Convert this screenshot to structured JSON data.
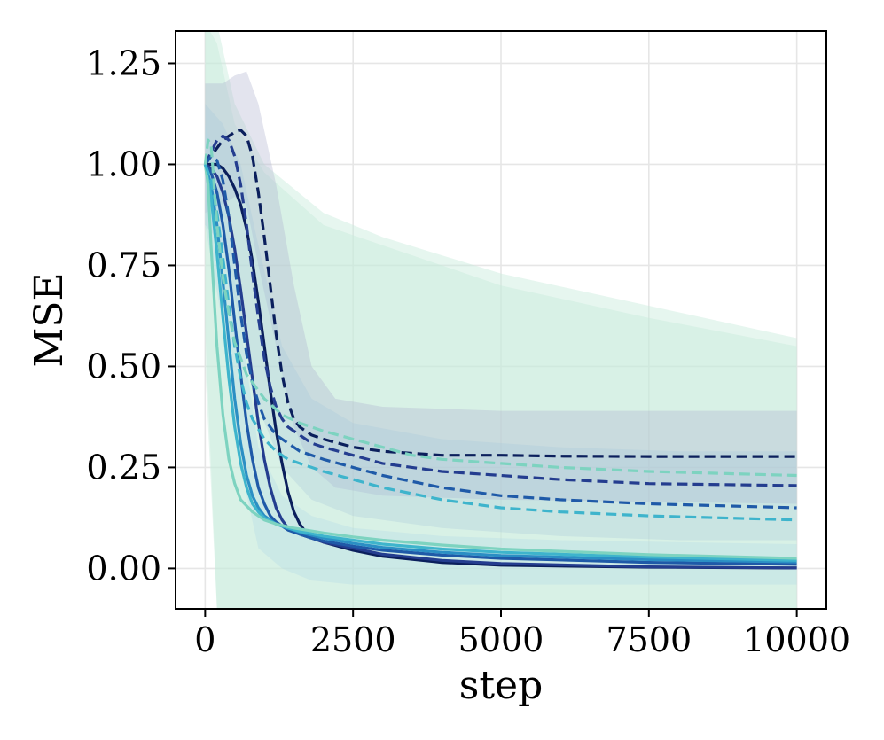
{
  "chart_data": {
    "type": "line",
    "title": "",
    "xlabel": "step",
    "ylabel": "MSE",
    "xlim": [
      -500,
      10500
    ],
    "ylim": [
      -0.1,
      1.33
    ],
    "grid": true,
    "legend": "none",
    "x_ticks": [
      0,
      2500,
      5000,
      7500,
      10000
    ],
    "x_tick_labels": [
      "0",
      "2500",
      "5000",
      "7500",
      "10000"
    ],
    "y_ticks": [
      0.0,
      0.25,
      0.5,
      0.75,
      1.0,
      1.25
    ],
    "y_tick_labels": [
      "0.00",
      "0.25",
      "0.50",
      "0.75",
      "1.00",
      "1.25"
    ],
    "bands": [
      {
        "color": "#c8ecdc",
        "opacity": 0.45,
        "x": [
          0,
          200,
          500,
          1000,
          2000,
          3000,
          5000,
          7500,
          10000
        ],
        "upper": [
          1.35,
          1.35,
          1.15,
          1.0,
          0.88,
          0.82,
          0.73,
          0.65,
          0.57
        ],
        "lower": [
          0.5,
          -0.1,
          -0.1,
          -0.1,
          -0.1,
          -0.1,
          -0.1,
          -0.1,
          -0.1
        ]
      },
      {
        "color": "#c8ecdc",
        "opacity": 0.45,
        "x": [
          0,
          200,
          500,
          1000,
          2000,
          3000,
          5000,
          7500,
          10000
        ],
        "upper": [
          1.35,
          1.3,
          1.1,
          0.98,
          0.85,
          0.8,
          0.7,
          0.62,
          0.55
        ],
        "lower": [
          0.6,
          -0.1,
          -0.1,
          -0.1,
          -0.1,
          -0.1,
          -0.1,
          -0.1,
          -0.1
        ]
      },
      {
        "color": "#aeb3cf",
        "opacity": 0.35,
        "x": [
          0,
          300,
          500,
          700,
          900,
          1200,
          1500,
          1800,
          2200,
          3000,
          5000,
          7500,
          10000
        ],
        "upper": [
          1.2,
          1.2,
          1.22,
          1.23,
          1.15,
          0.95,
          0.7,
          0.5,
          0.42,
          0.4,
          0.39,
          0.39,
          0.39
        ],
        "lower": [
          0.88,
          0.9,
          0.92,
          0.9,
          0.75,
          0.55,
          0.35,
          0.25,
          0.2,
          0.18,
          0.17,
          0.165,
          0.16
        ]
      },
      {
        "color": "#a7c8dc",
        "opacity": 0.3,
        "x": [
          0,
          300,
          600,
          900,
          1300,
          1800,
          2500,
          4000,
          6000,
          8000,
          10000
        ],
        "upper": [
          1.15,
          1.1,
          1.0,
          0.8,
          0.55,
          0.42,
          0.36,
          0.32,
          0.3,
          0.29,
          0.29
        ],
        "lower": [
          0.85,
          0.8,
          0.6,
          0.4,
          0.25,
          0.17,
          0.13,
          0.1,
          0.08,
          0.07,
          0.07
        ]
      },
      {
        "color": "#b5dbe6",
        "opacity": 0.35,
        "x": [
          0,
          300,
          600,
          900,
          1300,
          1800,
          2500,
          4000,
          6000,
          10000
        ],
        "upper": [
          1.1,
          0.95,
          0.6,
          0.3,
          0.18,
          0.13,
          0.1,
          0.08,
          0.07,
          0.06
        ],
        "lower": [
          0.85,
          0.6,
          0.25,
          0.05,
          0.0,
          -0.03,
          -0.04,
          -0.04,
          -0.04,
          -0.04
        ]
      }
    ],
    "series": [
      {
        "style": "solid",
        "color": "#0b1f5c",
        "x": [
          0,
          200,
          300,
          400,
          500,
          600,
          700,
          800,
          900,
          1000,
          1100,
          1200,
          1300,
          1400,
          1500,
          1600,
          1700,
          1800,
          2000,
          2500,
          3000,
          4000,
          5000,
          7500,
          10000
        ],
        "y": [
          1.0,
          1.0,
          0.99,
          0.97,
          0.94,
          0.9,
          0.84,
          0.76,
          0.66,
          0.55,
          0.44,
          0.34,
          0.26,
          0.19,
          0.14,
          0.11,
          0.09,
          0.08,
          0.065,
          0.045,
          0.03,
          0.015,
          0.008,
          0.003,
          0.001
        ]
      },
      {
        "style": "solid",
        "color": "#243d8f",
        "x": [
          0,
          100,
          200,
          300,
          400,
          500,
          600,
          700,
          800,
          900,
          1000,
          1100,
          1200,
          1300,
          1400,
          1600,
          1800,
          2000,
          2500,
          3000,
          4000,
          5000,
          7500,
          10000
        ],
        "y": [
          1.0,
          0.99,
          0.97,
          0.93,
          0.87,
          0.79,
          0.69,
          0.58,
          0.47,
          0.36,
          0.27,
          0.2,
          0.15,
          0.12,
          0.1,
          0.085,
          0.075,
          0.065,
          0.05,
          0.035,
          0.02,
          0.012,
          0.004,
          0.001
        ]
      },
      {
        "style": "solid",
        "color": "#1f5aa8",
        "x": [
          0,
          100,
          200,
          300,
          400,
          500,
          600,
          700,
          800,
          900,
          1000,
          1100,
          1200,
          1400,
          1600,
          1800,
          2000,
          2500,
          3000,
          4000,
          5000,
          7500,
          10000
        ],
        "y": [
          1.0,
          0.98,
          0.93,
          0.85,
          0.74,
          0.61,
          0.48,
          0.36,
          0.27,
          0.2,
          0.16,
          0.13,
          0.115,
          0.095,
          0.085,
          0.075,
          0.068,
          0.055,
          0.045,
          0.033,
          0.025,
          0.015,
          0.01
        ]
      },
      {
        "style": "solid",
        "color": "#2b8fc4",
        "x": [
          0,
          100,
          200,
          300,
          400,
          500,
          600,
          700,
          800,
          900,
          1000,
          1200,
          1400,
          1600,
          1800,
          2000,
          2500,
          3000,
          4000,
          5000,
          7500,
          10000
        ],
        "y": [
          1.0,
          0.95,
          0.85,
          0.71,
          0.56,
          0.42,
          0.31,
          0.23,
          0.18,
          0.15,
          0.13,
          0.11,
          0.1,
          0.09,
          0.082,
          0.075,
          0.062,
          0.052,
          0.04,
          0.032,
          0.022,
          0.016
        ]
      },
      {
        "style": "solid",
        "color": "#3eb4cc",
        "x": [
          0,
          100,
          200,
          300,
          400,
          500,
          600,
          700,
          800,
          900,
          1000,
          1200,
          1400,
          1600,
          1800,
          2000,
          2500,
          3000,
          4000,
          5000,
          7500,
          10000
        ],
        "y": [
          1.0,
          0.92,
          0.78,
          0.62,
          0.47,
          0.35,
          0.26,
          0.2,
          0.16,
          0.14,
          0.125,
          0.11,
          0.1,
          0.092,
          0.086,
          0.08,
          0.07,
          0.06,
          0.048,
          0.04,
          0.028,
          0.02
        ]
      },
      {
        "style": "solid",
        "color": "#7dd3c0",
        "x": [
          0,
          50,
          100,
          200,
          300,
          400,
          500,
          600,
          800,
          1000,
          1200,
          1500,
          2000,
          2500,
          3000,
          4000,
          5000,
          7500,
          10000
        ],
        "y": [
          1.0,
          0.95,
          0.8,
          0.55,
          0.38,
          0.27,
          0.21,
          0.17,
          0.14,
          0.12,
          0.11,
          0.1,
          0.088,
          0.078,
          0.07,
          0.058,
          0.048,
          0.034,
          0.025
        ]
      },
      {
        "style": "dashed",
        "color": "#0b1f5c",
        "x": [
          0,
          100,
          200,
          300,
          400,
          500,
          600,
          700,
          800,
          900,
          1000,
          1100,
          1200,
          1300,
          1400,
          1500,
          1600,
          1700,
          1800,
          2000,
          2500,
          3000,
          4000,
          5000,
          6000,
          7500,
          10000
        ],
        "y": [
          1.0,
          1.02,
          1.04,
          1.06,
          1.07,
          1.08,
          1.085,
          1.07,
          1.02,
          0.93,
          0.82,
          0.7,
          0.58,
          0.48,
          0.41,
          0.37,
          0.35,
          0.34,
          0.33,
          0.32,
          0.3,
          0.29,
          0.28,
          0.28,
          0.278,
          0.277,
          0.277
        ]
      },
      {
        "style": "dashed",
        "color": "#243d8f",
        "x": [
          0,
          100,
          200,
          300,
          400,
          500,
          600,
          700,
          800,
          900,
          1000,
          1100,
          1200,
          1300,
          1400,
          1600,
          1800,
          2000,
          2500,
          3000,
          4000,
          5000,
          6000,
          7500,
          10000
        ],
        "y": [
          1.0,
          1.03,
          1.06,
          1.07,
          1.06,
          1.02,
          0.95,
          0.85,
          0.73,
          0.62,
          0.52,
          0.45,
          0.4,
          0.37,
          0.35,
          0.33,
          0.31,
          0.3,
          0.28,
          0.26,
          0.24,
          0.23,
          0.22,
          0.21,
          0.205
        ]
      },
      {
        "style": "dashed",
        "color": "#1f5aa8",
        "x": [
          0,
          100,
          200,
          300,
          400,
          500,
          600,
          700,
          800,
          900,
          1000,
          1200,
          1400,
          1600,
          1800,
          2000,
          2500,
          3000,
          4000,
          5000,
          6000,
          7500,
          10000
        ],
        "y": [
          1.0,
          1.02,
          1.01,
          0.96,
          0.87,
          0.75,
          0.63,
          0.53,
          0.46,
          0.41,
          0.37,
          0.33,
          0.31,
          0.29,
          0.28,
          0.27,
          0.25,
          0.23,
          0.2,
          0.18,
          0.17,
          0.16,
          0.15
        ]
      },
      {
        "style": "dashed",
        "color": "#3eb4cc",
        "x": [
          0,
          100,
          200,
          300,
          400,
          500,
          600,
          700,
          800,
          1000,
          1200,
          1400,
          1600,
          1800,
          2000,
          2500,
          3000,
          4000,
          5000,
          6000,
          7500,
          10000
        ],
        "y": [
          1.0,
          0.96,
          0.88,
          0.77,
          0.65,
          0.55,
          0.47,
          0.41,
          0.37,
          0.32,
          0.29,
          0.27,
          0.26,
          0.25,
          0.24,
          0.22,
          0.2,
          0.17,
          0.15,
          0.14,
          0.13,
          0.12
        ]
      },
      {
        "style": "dashed",
        "color": "#7dd3c0",
        "x": [
          0,
          50,
          100,
          150,
          200,
          300,
          400,
          500,
          700,
          1000,
          1300,
          1600,
          2000,
          2500,
          3000,
          3500,
          4000,
          5000,
          6000,
          7500,
          10000
        ],
        "y": [
          1.0,
          1.06,
          1.05,
          0.95,
          0.85,
          0.72,
          0.63,
          0.56,
          0.48,
          0.42,
          0.38,
          0.36,
          0.34,
          0.32,
          0.3,
          0.28,
          0.27,
          0.26,
          0.25,
          0.24,
          0.23
        ]
      }
    ]
  }
}
